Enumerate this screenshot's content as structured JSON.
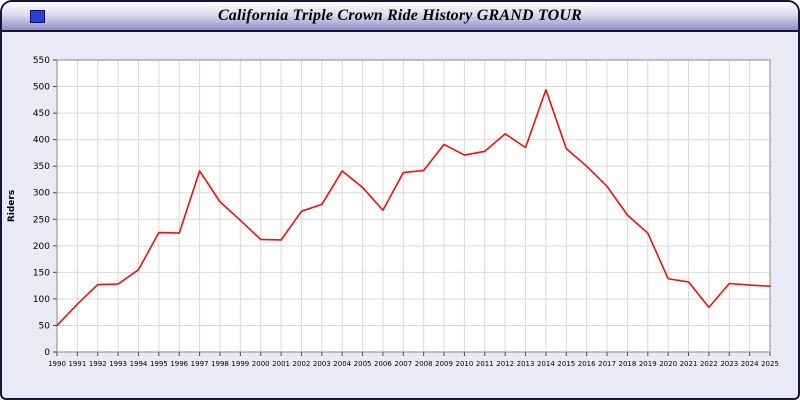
{
  "header": {
    "title": "California Triple Crown Ride History GRAND TOUR"
  },
  "colors": {
    "line": "#f01010",
    "plot_bg": "#ffffff",
    "panel_bg": "#eaeaf6",
    "grid": "#d9d9d9",
    "plot_border": "#8a8a8a",
    "titlebar_border": "#16163a",
    "icon_blue": "#2b3fd0"
  },
  "chart_data": {
    "type": "line",
    "title": "California Triple Crown Ride History GRAND TOUR",
    "xlabel": "",
    "ylabel": "Riders",
    "ylim": [
      0,
      550
    ],
    "ytick_step": 50,
    "grid": true,
    "legend_position": "none",
    "x": [
      1990,
      1991,
      1992,
      1993,
      1994,
      1995,
      1996,
      1997,
      1998,
      1999,
      2000,
      2001,
      2002,
      2003,
      2004,
      2005,
      2006,
      2007,
      2008,
      2009,
      2010,
      2011,
      2012,
      2013,
      2014,
      2015,
      2016,
      2017,
      2018,
      2019,
      2020,
      2021,
      2022,
      2023,
      2024,
      2025
    ],
    "values": [
      50,
      90,
      127,
      128,
      155,
      225,
      224,
      341,
      283,
      248,
      212,
      211,
      265,
      278,
      341,
      310,
      267,
      338,
      342,
      391,
      371,
      378,
      411,
      385,
      494,
      383,
      350,
      312,
      258,
      224,
      138,
      132,
      84,
      129,
      126,
      124
    ]
  }
}
